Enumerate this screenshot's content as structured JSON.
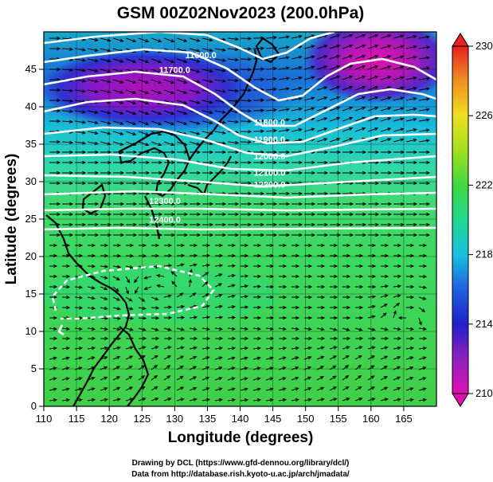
{
  "chart_data": {
    "type": "heatmap",
    "title": "GSM 00Z02Nov2023 (200.0hPa)",
    "xlabel": "Longitude (degrees)",
    "ylabel": "Latitude  (degrees)",
    "xlim": [
      110,
      170
    ],
    "ylim": [
      0,
      50
    ],
    "x_ticks": [
      "110",
      "115",
      "120",
      "125",
      "130",
      "135",
      "140",
      "145",
      "150",
      "155",
      "160",
      "165"
    ],
    "y_ticks": [
      "0",
      "5",
      "10",
      "15",
      "20",
      "25",
      "30",
      "35",
      "40",
      "45"
    ],
    "colorbar": {
      "min": 210,
      "max": 230,
      "ticks": [
        "210",
        "214",
        "218",
        "222",
        "226",
        "230"
      ]
    },
    "contours": [
      {
        "label": "11600.0",
        "lon": 134,
        "lat": 46.5
      },
      {
        "label": "11700.0",
        "lon": 130,
        "lat": 44.5
      },
      {
        "label": "11800.0",
        "lon": 144.5,
        "lat": 37.5
      },
      {
        "label": "11900.0",
        "lon": 144.5,
        "lat": 35.2
      },
      {
        "label": "12000.0",
        "lon": 144.5,
        "lat": 33.0
      },
      {
        "label": "12100.0",
        "lon": 144.5,
        "lat": 30.8
      },
      {
        "label": "12200.0",
        "lon": 144.5,
        "lat": 29.2
      },
      {
        "label": "12300.0",
        "lon": 128.5,
        "lat": 27.0
      },
      {
        "label": "12400.0",
        "lon": 128.5,
        "lat": 24.5
      }
    ],
    "grid": true
  },
  "credits": {
    "line1": "Drawing by DCL (https://www.gfd-dennou.org/library/dcl/)",
    "line2": "Data from http://database.rish.kyoto-u.ac.jp/arch/jmadata/"
  }
}
